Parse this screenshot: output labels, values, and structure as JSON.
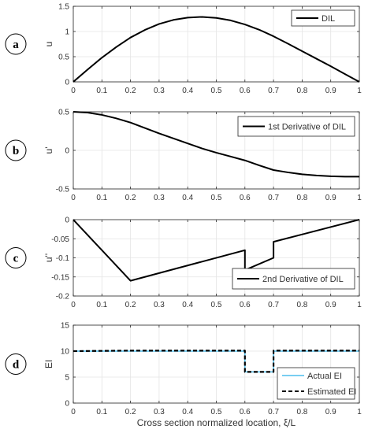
{
  "xlabel": "Cross section normalized location, ξ/L",
  "chart_data": [
    {
      "type": "line",
      "panel_label": "a",
      "ylabel": "u",
      "xlim": [
        0,
        1
      ],
      "ylim": [
        0,
        1.5
      ],
      "xticks": [
        "0",
        "0.1",
        "0.2",
        "0.3",
        "0.4",
        "0.5",
        "0.6",
        "0.7",
        "0.8",
        "0.9",
        "1"
      ],
      "yticks": [
        "0",
        "0.5",
        "1",
        "1.5"
      ],
      "grid": true,
      "legend_position": "top-right",
      "series": [
        {
          "name": "DIL",
          "color": "#000000",
          "style": "solid",
          "x": [
            0,
            0.05,
            0.1,
            0.15,
            0.2,
            0.25,
            0.3,
            0.35,
            0.4,
            0.45,
            0.5,
            0.55,
            0.6,
            0.65,
            0.7,
            0.75,
            0.8,
            0.85,
            0.9,
            0.95,
            1.0
          ],
          "y": [
            0,
            0.245,
            0.48,
            0.69,
            0.88,
            1.03,
            1.15,
            1.23,
            1.275,
            1.29,
            1.27,
            1.22,
            1.14,
            1.035,
            0.905,
            0.76,
            0.61,
            0.46,
            0.31,
            0.155,
            0
          ]
        }
      ]
    },
    {
      "type": "line",
      "panel_label": "b",
      "ylabel": "u'",
      "xlim": [
        0,
        1
      ],
      "ylim": [
        -0.5,
        0.5
      ],
      "xticks": [
        "0",
        "0.1",
        "0.2",
        "0.3",
        "0.4",
        "0.5",
        "0.6",
        "0.7",
        "0.8",
        "0.9",
        "1"
      ],
      "yticks": [
        "-0.5",
        "0",
        "0.5"
      ],
      "grid": true,
      "legend_position": "top-right",
      "series": [
        {
          "name": "1st Derivative of DIL",
          "color": "#000000",
          "style": "solid",
          "x": [
            0,
            0.05,
            0.1,
            0.15,
            0.2,
            0.25,
            0.3,
            0.35,
            0.4,
            0.45,
            0.5,
            0.55,
            0.6,
            0.65,
            0.7,
            0.75,
            0.8,
            0.85,
            0.9,
            0.95,
            1.0
          ],
          "y": [
            0.5,
            0.49,
            0.46,
            0.415,
            0.36,
            0.29,
            0.22,
            0.155,
            0.09,
            0.025,
            -0.03,
            -0.08,
            -0.13,
            -0.195,
            -0.255,
            -0.285,
            -0.31,
            -0.325,
            -0.335,
            -0.34,
            -0.34
          ]
        }
      ]
    },
    {
      "type": "line",
      "panel_label": "c",
      "ylabel": "u''",
      "xlim": [
        0,
        1
      ],
      "ylim": [
        -0.2,
        0
      ],
      "xticks": [
        "0",
        "0.1",
        "0.2",
        "0.3",
        "0.4",
        "0.5",
        "0.6",
        "0.7",
        "0.8",
        "0.9",
        "1"
      ],
      "yticks": [
        "-0.2",
        "-0.15",
        "-0.1",
        "-0.05",
        "0"
      ],
      "grid": true,
      "legend_position": "bottom-right",
      "series": [
        {
          "name": "2nd Derivative of DIL",
          "color": "#000000",
          "style": "solid",
          "x": [
            0,
            0.2,
            0.6,
            0.6,
            0.7,
            0.7,
            1.0
          ],
          "y": [
            0,
            -0.16,
            -0.08,
            -0.132,
            -0.1,
            -0.058,
            0
          ]
        }
      ]
    },
    {
      "type": "line",
      "panel_label": "d",
      "ylabel": "EI",
      "xlim": [
        0,
        1
      ],
      "ylim": [
        0,
        15
      ],
      "xticks": [
        "0",
        "0.1",
        "0.2",
        "0.3",
        "0.4",
        "0.5",
        "0.6",
        "0.7",
        "0.8",
        "0.9",
        "1"
      ],
      "yticks": [
        "0",
        "5",
        "10",
        "15"
      ],
      "grid": true,
      "legend_position": "bottom-right",
      "series": [
        {
          "name": "Actual EI",
          "color": "#4dbeee",
          "style": "solid",
          "x": [
            0,
            0.6,
            0.6,
            0.7,
            0.7,
            1.0
          ],
          "y": [
            10,
            10,
            6,
            6,
            10,
            10
          ]
        },
        {
          "name": "Estimated EI",
          "color": "#000000",
          "style": "dashed",
          "x": [
            0,
            0.2,
            0.6,
            0.6,
            0.7,
            0.7,
            1.0
          ],
          "y": [
            10,
            10.1,
            10.1,
            6,
            6,
            10.1,
            10.1
          ]
        }
      ]
    }
  ]
}
